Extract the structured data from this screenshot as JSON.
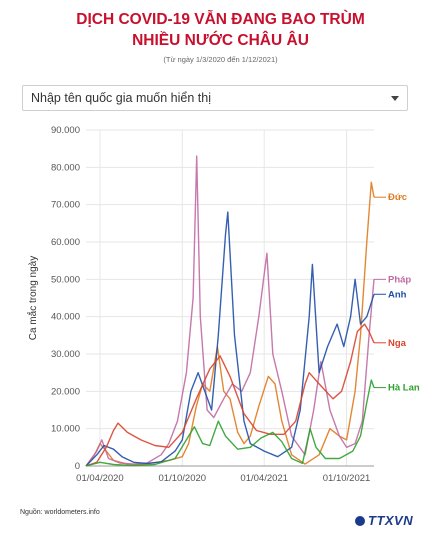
{
  "header": {
    "title_line1": "DỊCH COVID-19 VẪN ĐANG BAO TRÙM",
    "title_line2": "NHIỀU NƯỚC CHÂU ÂU",
    "subtitle": "(Từ ngày 1/3/2020 đến 1/12/2021)"
  },
  "selector": {
    "placeholder": "Nhập tên quốc gia muốn hiển thị"
  },
  "footer": {
    "source": "Nguồn: worldometers.info",
    "logo": "TTXVN"
  },
  "colors": {
    "Đức": "#e07a1f",
    "Pháp": "#c06aa3",
    "Anh": "#1f4fa8",
    "Nga": "#d9442e",
    "Hà Lan": "#2ea02e"
  },
  "chart_data": {
    "type": "line",
    "ylabel": "Ca mắc trong ngày",
    "ylim": [
      0,
      90000
    ],
    "yticks": [
      "0",
      "10.000",
      "20.000",
      "30.000",
      "40.000",
      "50.000",
      "60.000",
      "70.000",
      "80.000",
      "90.000"
    ],
    "ytick_values": [
      0,
      10000,
      20000,
      30000,
      40000,
      50000,
      60000,
      70000,
      80000,
      90000
    ],
    "xlim": [
      "2020-03-01",
      "2021-12-01"
    ],
    "xticks": [
      {
        "date": "2020-04-01",
        "label": "01/04/2020"
      },
      {
        "date": "2020-10-01",
        "label": "01/10/2020"
      },
      {
        "date": "2021-04-01",
        "label": "01/04/2021"
      },
      {
        "date": "2021-10-01",
        "label": "01/10/2021"
      }
    ],
    "grid": true,
    "series": [
      {
        "name": "Đức",
        "label_value": 72000,
        "points": [
          [
            "2020-03-01",
            0
          ],
          [
            "2020-03-20",
            3000
          ],
          [
            "2020-04-01",
            6000
          ],
          [
            "2020-04-15",
            4000
          ],
          [
            "2020-05-01",
            1500
          ],
          [
            "2020-06-01",
            500
          ],
          [
            "2020-07-01",
            400
          ],
          [
            "2020-08-01",
            900
          ],
          [
            "2020-09-01",
            1500
          ],
          [
            "2020-10-01",
            2500
          ],
          [
            "2020-10-15",
            6000
          ],
          [
            "2020-11-01",
            16000
          ],
          [
            "2020-11-15",
            22000
          ],
          [
            "2020-12-01",
            20000
          ],
          [
            "2020-12-18",
            32000
          ],
          [
            "2021-01-01",
            20000
          ],
          [
            "2021-01-15",
            18000
          ],
          [
            "2021-02-01",
            9000
          ],
          [
            "2021-02-15",
            6000
          ],
          [
            "2021-03-01",
            8000
          ],
          [
            "2021-03-20",
            16000
          ],
          [
            "2021-04-10",
            24000
          ],
          [
            "2021-04-25",
            22000
          ],
          [
            "2021-05-10",
            12000
          ],
          [
            "2021-06-01",
            3000
          ],
          [
            "2021-07-01",
            500
          ],
          [
            "2021-08-01",
            3000
          ],
          [
            "2021-08-25",
            10000
          ],
          [
            "2021-09-15",
            8000
          ],
          [
            "2021-10-01",
            7000
          ],
          [
            "2021-10-20",
            20000
          ],
          [
            "2021-11-01",
            35000
          ],
          [
            "2021-11-15",
            60000
          ],
          [
            "2021-11-25",
            76000
          ],
          [
            "2021-12-01",
            72000
          ]
        ]
      },
      {
        "name": "Pháp",
        "label_value": 50000,
        "points": [
          [
            "2020-03-01",
            0
          ],
          [
            "2020-03-25",
            4000
          ],
          [
            "2020-04-05",
            7000
          ],
          [
            "2020-04-20",
            2000
          ],
          [
            "2020-05-15",
            800
          ],
          [
            "2020-06-15",
            500
          ],
          [
            "2020-07-15",
            800
          ],
          [
            "2020-08-15",
            3000
          ],
          [
            "2020-09-01",
            6000
          ],
          [
            "2020-09-20",
            12000
          ],
          [
            "2020-10-10",
            25000
          ],
          [
            "2020-10-25",
            45000
          ],
          [
            "2020-11-02",
            83000
          ],
          [
            "2020-11-10",
            40000
          ],
          [
            "2020-11-25",
            15000
          ],
          [
            "2020-12-10",
            13000
          ],
          [
            "2021-01-01",
            18000
          ],
          [
            "2021-01-20",
            22000
          ],
          [
            "2021-02-10",
            20000
          ],
          [
            "2021-03-01",
            25000
          ],
          [
            "2021-03-20",
            40000
          ],
          [
            "2021-04-07",
            57000
          ],
          [
            "2021-04-20",
            30000
          ],
          [
            "2021-05-10",
            20000
          ],
          [
            "2021-06-01",
            8000
          ],
          [
            "2021-07-01",
            3000
          ],
          [
            "2021-07-20",
            15000
          ],
          [
            "2021-08-05",
            28000
          ],
          [
            "2021-08-25",
            15000
          ],
          [
            "2021-09-15",
            8000
          ],
          [
            "2021-10-01",
            5000
          ],
          [
            "2021-10-20",
            6000
          ],
          [
            "2021-11-05",
            12000
          ],
          [
            "2021-11-20",
            35000
          ],
          [
            "2021-12-01",
            50000
          ]
        ]
      },
      {
        "name": "Anh",
        "label_value": 46000,
        "points": [
          [
            "2020-03-01",
            0
          ],
          [
            "2020-03-25",
            3000
          ],
          [
            "2020-04-10",
            5500
          ],
          [
            "2020-05-01",
            4500
          ],
          [
            "2020-05-20",
            2500
          ],
          [
            "2020-06-15",
            1000
          ],
          [
            "2020-07-15",
            700
          ],
          [
            "2020-08-15",
            1100
          ],
          [
            "2020-09-15",
            4000
          ],
          [
            "2020-10-01",
            7000
          ],
          [
            "2020-10-20",
            20000
          ],
          [
            "2020-11-05",
            25000
          ],
          [
            "2020-11-20",
            20000
          ],
          [
            "2020-12-05",
            15000
          ],
          [
            "2020-12-20",
            35000
          ],
          [
            "2021-01-05",
            62000
          ],
          [
            "2021-01-10",
            68000
          ],
          [
            "2021-01-25",
            35000
          ],
          [
            "2021-02-15",
            12000
          ],
          [
            "2021-03-01",
            6000
          ],
          [
            "2021-04-01",
            4000
          ],
          [
            "2021-05-01",
            2500
          ],
          [
            "2021-06-01",
            5000
          ],
          [
            "2021-06-20",
            15000
          ],
          [
            "2021-07-10",
            40000
          ],
          [
            "2021-07-17",
            54000
          ],
          [
            "2021-08-01",
            25000
          ],
          [
            "2021-08-20",
            32000
          ],
          [
            "2021-09-10",
            38000
          ],
          [
            "2021-09-25",
            32000
          ],
          [
            "2021-10-10",
            40000
          ],
          [
            "2021-10-20",
            50000
          ],
          [
            "2021-11-01",
            38000
          ],
          [
            "2021-11-15",
            40000
          ],
          [
            "2021-12-01",
            46000
          ]
        ]
      },
      {
        "name": "Nga",
        "label_value": 33000,
        "points": [
          [
            "2020-03-01",
            0
          ],
          [
            "2020-03-25",
            1000
          ],
          [
            "2020-04-15",
            5000
          ],
          [
            "2020-05-01",
            9500
          ],
          [
            "2020-05-11",
            11500
          ],
          [
            "2020-06-01",
            9000
          ],
          [
            "2020-07-01",
            7000
          ],
          [
            "2020-08-01",
            5500
          ],
          [
            "2020-09-01",
            5000
          ],
          [
            "2020-10-01",
            9000
          ],
          [
            "2020-11-01",
            18000
          ],
          [
            "2020-12-01",
            26000
          ],
          [
            "2020-12-24",
            29500
          ],
          [
            "2021-01-15",
            24000
          ],
          [
            "2021-02-15",
            14000
          ],
          [
            "2021-03-15",
            9500
          ],
          [
            "2021-04-15",
            8500
          ],
          [
            "2021-05-15",
            8500
          ],
          [
            "2021-06-10",
            12000
          ],
          [
            "2021-07-01",
            22000
          ],
          [
            "2021-07-10",
            25000
          ],
          [
            "2021-08-01",
            22000
          ],
          [
            "2021-09-01",
            18000
          ],
          [
            "2021-09-20",
            20000
          ],
          [
            "2021-10-10",
            28000
          ],
          [
            "2021-10-25",
            36000
          ],
          [
            "2021-11-10",
            38000
          ],
          [
            "2021-11-20",
            36000
          ],
          [
            "2021-12-01",
            33000
          ]
        ]
      },
      {
        "name": "Hà Lan",
        "label_value": 21000,
        "points": [
          [
            "2020-03-01",
            0
          ],
          [
            "2020-04-01",
            1000
          ],
          [
            "2020-05-01",
            400
          ],
          [
            "2020-06-15",
            100
          ],
          [
            "2020-08-01",
            400
          ],
          [
            "2020-09-15",
            2000
          ],
          [
            "2020-10-15",
            8000
          ],
          [
            "2020-10-28",
            10500
          ],
          [
            "2020-11-15",
            6000
          ],
          [
            "2020-12-01",
            5500
          ],
          [
            "2020-12-20",
            12000
          ],
          [
            "2021-01-05",
            8000
          ],
          [
            "2021-02-01",
            4500
          ],
          [
            "2021-03-01",
            5000
          ],
          [
            "2021-03-25",
            7500
          ],
          [
            "2021-04-20",
            9000
          ],
          [
            "2021-05-10",
            6500
          ],
          [
            "2021-06-01",
            2000
          ],
          [
            "2021-06-25",
            700
          ],
          [
            "2021-07-12",
            10000
          ],
          [
            "2021-07-25",
            5000
          ],
          [
            "2021-08-15",
            2000
          ],
          [
            "2021-09-15",
            2000
          ],
          [
            "2021-10-15",
            4000
          ],
          [
            "2021-11-01",
            8000
          ],
          [
            "2021-11-15",
            17000
          ],
          [
            "2021-11-25",
            23000
          ],
          [
            "2021-12-01",
            21000
          ]
        ]
      }
    ]
  }
}
